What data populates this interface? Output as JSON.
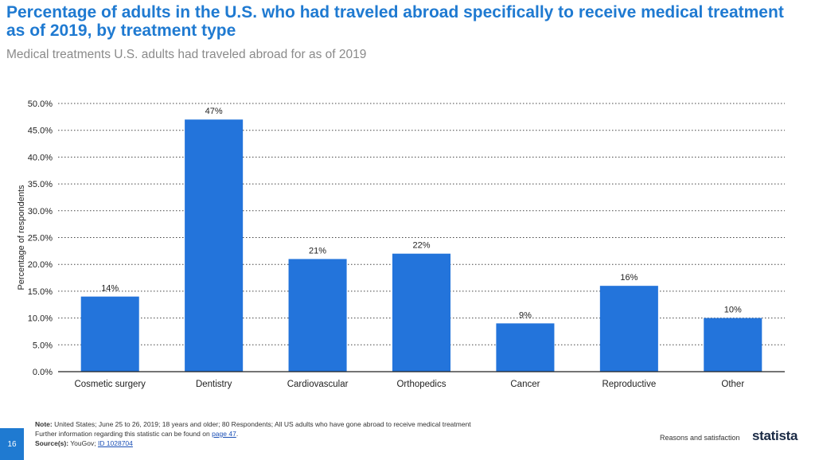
{
  "header": {
    "title": "Percentage of adults in the U.S. who had traveled abroad specifically to receive medical treatment as of 2019, by treatment type",
    "subtitle": "Medical treatments U.S. adults had traveled abroad for as of 2019"
  },
  "chart_data": {
    "type": "bar",
    "title": "",
    "xlabel": "",
    "ylabel": "Percentage of respondents",
    "ylim": [
      0,
      50
    ],
    "yticks": [
      "0.0%",
      "5.0%",
      "10.0%",
      "15.0%",
      "20.0%",
      "25.0%",
      "30.0%",
      "35.0%",
      "40.0%",
      "45.0%",
      "50.0%"
    ],
    "grid": true,
    "categories": [
      "Cosmetic surgery",
      "Dentistry",
      "Cardiovascular",
      "Orthopedics",
      "Cancer",
      "Reproductive",
      "Other"
    ],
    "values": [
      14,
      47,
      21,
      22,
      9,
      16,
      10
    ],
    "data_labels": [
      "14%",
      "47%",
      "21%",
      "22%",
      "9%",
      "16%",
      "10%"
    ],
    "bar_color": "#2374db"
  },
  "footer": {
    "note_label": "Note:",
    "note_text": "United States; June 25 to 26, 2019; 18 years and older; 80 Respondents; All US adults who have gone abroad to receive medical treatment",
    "further_text": "Further information regarding this statistic can be found on",
    "further_link": "page 47",
    "source_label": "Source(s):",
    "source_text": "YouGov;",
    "source_link": "ID 1028704",
    "page_number": "16",
    "section": "Reasons and satisfaction",
    "brand": "statista"
  }
}
